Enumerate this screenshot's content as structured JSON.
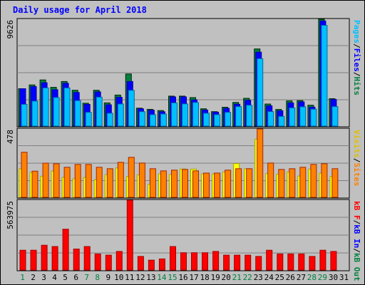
{
  "chart_data": {
    "type": "bar",
    "title": "Daily usage for April 2018",
    "days": [
      "1",
      "2",
      "3",
      "4",
      "5",
      "6",
      "7",
      "8",
      "9",
      "10",
      "11",
      "12",
      "13",
      "14",
      "15",
      "16",
      "17",
      "18",
      "19",
      "20",
      "21",
      "22",
      "23",
      "24",
      "25",
      "26",
      "27",
      "28",
      "29",
      "30",
      "31"
    ],
    "weekend_days": [
      "1",
      "7",
      "8",
      "14",
      "15",
      "21",
      "22",
      "28",
      "29"
    ],
    "panels": [
      {
        "name": "top",
        "max_label": "9626",
        "max": 9626,
        "series": [
          {
            "name": "Hits",
            "color": "#008040",
            "values": [
              3370,
              3710,
              4160,
              3490,
              4020,
              3230,
              2060,
              3230,
              2090,
              2800,
              4700,
              1620,
              1510,
              1400,
              2700,
              2700,
              2570,
              1560,
              1300,
              1700,
              2130,
              2500,
              6950,
              1990,
              1500,
              2270,
              2300,
              1880,
              9626,
              2470,
              0
            ]
          },
          {
            "name": "Files",
            "color": "#0000ff",
            "values": [
              3370,
              3560,
              3910,
              3280,
              3860,
              3030,
              1960,
              3080,
              1920,
              2600,
              4020,
              1560,
              1430,
              1290,
              2630,
              2630,
              2360,
              1450,
              1260,
              1600,
              1970,
              2330,
              6660,
              1830,
              1380,
              2090,
              2180,
              1710,
              9470,
              2400,
              0
            ]
          },
          {
            "name": "Pages",
            "color": "#00c0ff",
            "values": [
              1960,
              2250,
              3440,
              2580,
              3440,
              2300,
              1240,
              2610,
              1160,
              1990,
              3220,
              1300,
              1030,
              1090,
              2090,
              2000,
              2130,
              1160,
              1030,
              1240,
              1760,
              1880,
              6080,
              1310,
              870,
              1640,
              1740,
              1530,
              9080,
              1760,
              0
            ]
          }
        ]
      },
      {
        "name": "middle",
        "max_label": "478",
        "max": 478,
        "series": [
          {
            "name": "Visits",
            "color": "#ffff00",
            "values": [
              200,
              175,
              148,
              184,
              140,
              130,
              140,
              124,
              159,
              205,
              145,
              157,
              91,
              164,
              160,
              198,
              197,
              164,
              164,
              177,
              236,
              200,
              407,
              166,
              162,
              178,
              149,
              197,
              170,
              145,
              0
            ]
          },
          {
            "name": "Sites",
            "color": "#ff8000",
            "values": [
              315,
              183,
              239,
              235,
              210,
              230,
              230,
              210,
              200,
              245,
              280,
              240,
              200,
              185,
              190,
              195,
              185,
              170,
              170,
              190,
              200,
              200,
              478,
              240,
              195,
              200,
              210,
              230,
              235,
              200,
              0
            ]
          }
        ]
      },
      {
        "name": "bottom",
        "max_label": "563975",
        "max": 563975,
        "series": [
          {
            "name": "KBytes In",
            "color": "#0000ff",
            "values": []
          },
          {
            "name": "KBytes Out",
            "color": "#008040",
            "values": []
          },
          {
            "name": "KBytes",
            "color": "#ff0000",
            "values": [
              160000,
              160000,
              200000,
              190000,
              330000,
              170000,
              190000,
              130000,
              120000,
              150000,
              563975,
              110000,
              80000,
              90000,
              190000,
              140000,
              140000,
              140000,
              150000,
              120000,
              120000,
              120000,
              110000,
              160000,
              130000,
              130000,
              130000,
              110000,
              160000,
              150000,
              0
            ]
          }
        ]
      }
    ],
    "right_labels": {
      "top": [
        {
          "text": "Pages",
          "color": "#00c0ff"
        },
        {
          "text": "/",
          "color": "#000000"
        },
        {
          "text": "Files",
          "color": "#0000ff"
        },
        {
          "text": "/",
          "color": "#000000"
        },
        {
          "text": "Hits",
          "color": "#008040"
        }
      ],
      "middle": [
        {
          "text": "Visits",
          "color": "#e0c000"
        },
        {
          "text": "/",
          "color": "#000000"
        },
        {
          "text": "Sites",
          "color": "#ff8000"
        }
      ],
      "bottom": [
        {
          "text": "kB F",
          "color": "#ff0000"
        },
        {
          "text": "/",
          "color": "#000000"
        },
        {
          "text": "kB In",
          "color": "#0000ff"
        },
        {
          "text": "/",
          "color": "#000000"
        },
        {
          "text": "kB Out",
          "color": "#008040"
        }
      ]
    },
    "grid": true
  }
}
